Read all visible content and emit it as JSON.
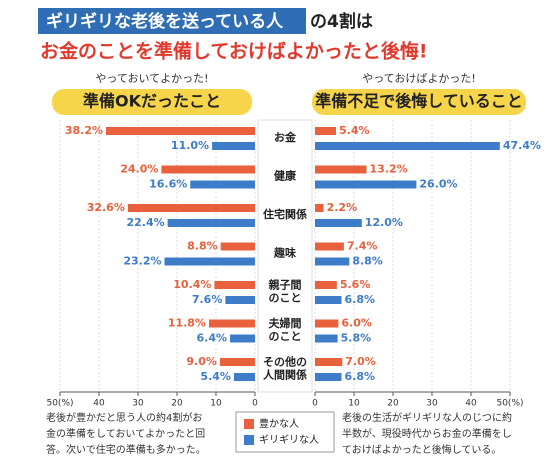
{
  "header": {
    "title_highlight": "ギリギリな老後を送っている人",
    "title_rest": "の4割は",
    "subtitle": "お金のことを準備しておけばよかったと後悔!"
  },
  "chart_data": {
    "type": "butterfly",
    "categories": [
      [
        "お金"
      ],
      [
        "健康"
      ],
      [
        "住宅関係"
      ],
      [
        "趣味"
      ],
      [
        "親子間",
        "のこと"
      ],
      [
        "夫婦間",
        "のこと"
      ],
      [
        "その他の",
        "人間関係"
      ]
    ],
    "xlim": [
      0,
      50
    ],
    "xticks": [
      0,
      10,
      20,
      30,
      40,
      {
        "value": 50,
        "label": "50(%)"
      }
    ],
    "panels": [
      {
        "note": "やっておいてよかった!",
        "heading": "準備OKだったこと",
        "series": [
          {
            "name": "豊かな人",
            "color": "#e8603c",
            "values": [
              38.2,
              24.0,
              32.6,
              8.8,
              10.4,
              11.8,
              9.0
            ],
            "value_labels": [
              "38.2%",
              "24.0%",
              "32.6%",
              "8.8%",
              "10.4%",
              "11.8%",
              "9.0%"
            ]
          },
          {
            "name": "ギリギリな人",
            "color": "#3d7cc9",
            "values": [
              11.0,
              16.6,
              22.4,
              23.2,
              7.6,
              6.4,
              5.4
            ],
            "value_labels": [
              "11.0%",
              "16.6%",
              "22.4%",
              "23.2%",
              "7.6%",
              "6.4%",
              "5.4%"
            ]
          }
        ],
        "footnote": "老後が豊かだと思う人の約4割がお金の準備をしておいてよかったと回答。次いで住宅の準備も多かった。"
      },
      {
        "note": "やっておけばよかった!",
        "heading": "準備不足で後悔していること",
        "series": [
          {
            "color": "#e8603c",
            "values": [
              5.4,
              13.2,
              2.2,
              7.4,
              5.6,
              6.0,
              7.0
            ],
            "value_labels": [
              "5.4%",
              "13.2%",
              "2.2%",
              "7.4%",
              "5.6%",
              "6.0%",
              "7.0%"
            ]
          },
          {
            "color": "#3d7cc9",
            "values": [
              47.4,
              26.0,
              12.0,
              8.8,
              6.8,
              5.8,
              6.8
            ],
            "value_labels": [
              "47.4%",
              "26.0%",
              "12.0%",
              "8.8%",
              "6.8%",
              "5.8%",
              "6.8%"
            ]
          }
        ],
        "footnote": "老後の生活がギリギリな人のじつに約半数が、現役時代からお金の準備をしておけばよかったと後悔している。"
      }
    ]
  }
}
